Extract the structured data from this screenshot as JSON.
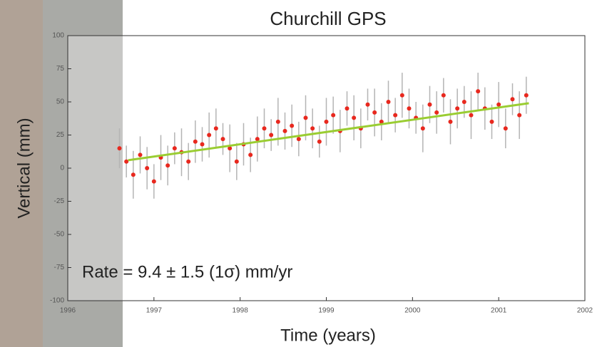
{
  "chart_data": {
    "type": "scatter",
    "title": "Churchill GPS",
    "x_label": "Time (years)",
    "y_label": "Vertical (mm)",
    "annotation": "Rate = 9.4 ± 1.5 (1σ) mm/yr",
    "xlim": [
      1996,
      2002
    ],
    "xticks": [
      1996,
      1997,
      1998,
      1999,
      2000,
      2001,
      2002
    ],
    "ylim": [
      -100,
      100
    ],
    "yticks": [
      -100,
      -75,
      -50,
      -25,
      0,
      25,
      50,
      75,
      100
    ],
    "series": [
      {
        "color": "#e8281e",
        "error_color": "#b4b4b4",
        "x": [
          1996.6,
          1996.68,
          1996.76,
          1996.84,
          1996.92,
          1997.0,
          1997.08,
          1997.16,
          1997.24,
          1997.32,
          1997.4,
          1997.48,
          1997.56,
          1997.64,
          1997.72,
          1997.8,
          1997.88,
          1997.96,
          1998.04,
          1998.12,
          1998.2,
          1998.28,
          1998.36,
          1998.44,
          1998.52,
          1998.6,
          1998.68,
          1998.76,
          1998.84,
          1998.92,
          1999.0,
          1999.08,
          1999.16,
          1999.24,
          1999.32,
          1999.4,
          1999.48,
          1999.56,
          1999.64,
          1999.72,
          1999.8,
          1999.88,
          1999.96,
          2000.04,
          2000.12,
          2000.2,
          2000.28,
          2000.36,
          2000.44,
          2000.52,
          2000.6,
          2000.68,
          2000.76,
          2000.84,
          2000.92,
          2001.0,
          2001.08,
          2001.16,
          2001.24,
          2001.32
        ],
        "values": [
          15,
          5,
          -5,
          10,
          0,
          -10,
          8,
          2,
          15,
          12,
          5,
          20,
          18,
          25,
          30,
          22,
          15,
          5,
          18,
          10,
          22,
          30,
          25,
          35,
          28,
          32,
          22,
          38,
          30,
          20,
          35,
          40,
          28,
          45,
          38,
          30,
          48,
          42,
          35,
          50,
          40,
          55,
          45,
          38,
          30,
          48,
          42,
          55,
          35,
          45,
          50,
          40,
          58,
          45,
          35,
          48,
          30,
          52,
          40,
          55
        ],
        "errors": [
          15,
          12,
          18,
          14,
          16,
          13,
          17,
          15,
          12,
          18,
          14,
          16,
          13,
          17,
          15,
          12,
          18,
          14,
          16,
          13,
          17,
          15,
          12,
          18,
          14,
          16,
          13,
          17,
          15,
          12,
          18,
          14,
          16,
          13,
          17,
          15,
          12,
          18,
          14,
          16,
          13,
          17,
          15,
          12,
          18,
          14,
          16,
          13,
          17,
          15,
          12,
          18,
          14,
          16,
          13,
          17,
          15,
          12,
          18,
          14
        ]
      },
      {
        "type": "line",
        "color": "#9acd32",
        "x": [
          1996.7,
          2001.35
        ],
        "values": [
          6,
          49
        ]
      }
    ]
  }
}
